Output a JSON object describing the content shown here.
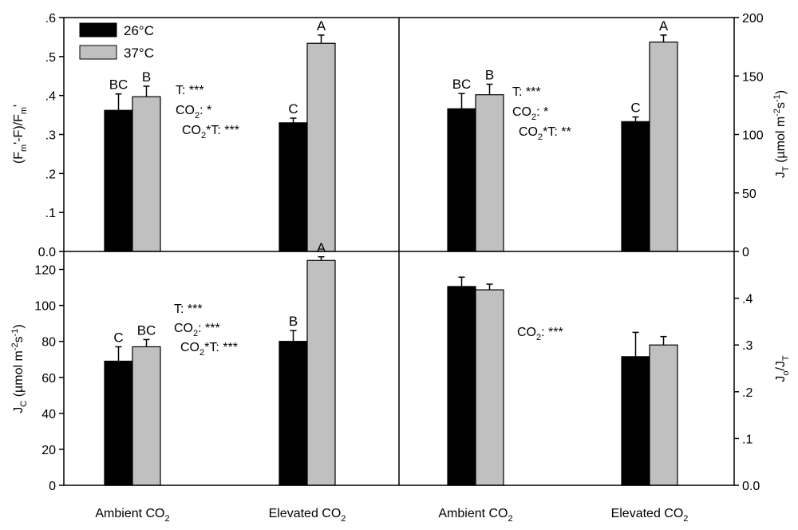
{
  "legend": [
    {
      "name": "26°C",
      "color": "#000000"
    },
    {
      "name": "37°C",
      "color": "#c0c0c0"
    }
  ],
  "x_category_labels": [
    {
      "main": "Ambient CO",
      "sub": "2"
    },
    {
      "main": "Elevated CO",
      "sub": "2"
    }
  ],
  "y_axis_labels": {
    "top_left": {
      "p1": "(F",
      "s1": "m",
      "p2": "'-F)/F",
      "s2": "m",
      "p3": "'"
    },
    "top_right": {
      "p1": "J",
      "s1": "T",
      "p2": " (µmol  m",
      "sp1": "-2",
      "p3": "s",
      "sp2": "-1",
      "p4": ")"
    },
    "bottom_left": {
      "p1": "J",
      "s1": "C",
      "p2": " (µmol m",
      "sp1": "-2",
      "p3": "s",
      "sp2": "-1",
      "p4": ")"
    },
    "bottom_right": {
      "p1": "J",
      "s1": "o",
      "p2": "/J",
      "s2": "T"
    }
  },
  "chart_data": [
    {
      "type": "bar",
      "panel": "top-left",
      "categories": [
        "Ambient CO2",
        "Elevated CO2"
      ],
      "series": [
        {
          "name": "26°C",
          "values": [
            0.362,
            0.33
          ],
          "errors": [
            0.042,
            0.012
          ],
          "letters": [
            "BC",
            "C"
          ]
        },
        {
          "name": "37°C",
          "values": [
            0.397,
            0.534
          ],
          "errors": [
            0.027,
            0.021
          ],
          "letters": [
            "B",
            "A"
          ]
        }
      ],
      "ylim": [
        0,
        0.6
      ],
      "yticks": [
        0,
        0.1,
        0.2,
        0.3,
        0.4,
        0.5,
        0.6
      ],
      "ytick_labels": [
        "0.0",
        ".1",
        ".2",
        ".3",
        ".4",
        ".5",
        ".6"
      ],
      "axis_side": "left",
      "stats": [
        {
          "a": "T: ***"
        },
        {
          "a": "CO",
          "sub": "2",
          "b": ": *"
        },
        {
          "a": "CO",
          "sub": "2",
          "b": "*T: ***"
        }
      ]
    },
    {
      "type": "bar",
      "panel": "top-right",
      "categories": [
        "Ambient CO2",
        "Elevated CO2"
      ],
      "series": [
        {
          "name": "26°C",
          "values": [
            122,
            111
          ],
          "errors": [
            13,
            4
          ],
          "letters": [
            "BC",
            "C"
          ]
        },
        {
          "name": "37°C",
          "values": [
            134,
            179
          ],
          "errors": [
            9,
            6
          ],
          "letters": [
            "B",
            "A"
          ]
        }
      ],
      "ylim": [
        0,
        200
      ],
      "yticks": [
        0,
        50,
        100,
        150,
        200
      ],
      "ytick_labels": [
        "0",
        "50",
        "100",
        "150",
        "200"
      ],
      "axis_side": "right",
      "stats": [
        {
          "a": "T: ***"
        },
        {
          "a": "CO",
          "sub": "2",
          "b": ": *"
        },
        {
          "a": "CO",
          "sub": "2",
          "b": "*T: **"
        }
      ]
    },
    {
      "type": "bar",
      "panel": "bottom-left",
      "categories": [
        "Ambient CO2",
        "Elevated CO2"
      ],
      "series": [
        {
          "name": "26°C",
          "values": [
            69,
            80
          ],
          "errors": [
            8,
            6
          ],
          "letters": [
            "C",
            "B"
          ]
        },
        {
          "name": "37°C",
          "values": [
            77,
            125
          ],
          "errors": [
            4,
            2
          ],
          "letters": [
            "BC",
            "A"
          ]
        }
      ],
      "ylim": [
        0,
        130
      ],
      "yticks": [
        0,
        20,
        40,
        60,
        80,
        100,
        120
      ],
      "ytick_labels": [
        "0",
        "20",
        "40",
        "60",
        "80",
        "100",
        "120"
      ],
      "axis_side": "left",
      "stats": [
        {
          "a": "T: ***"
        },
        {
          "a": "CO",
          "sub": "2",
          "b": ": ***"
        },
        {
          "a": "CO",
          "sub": "2",
          "b": "*T: ***"
        }
      ]
    },
    {
      "type": "bar",
      "panel": "bottom-right",
      "categories": [
        "Ambient CO2",
        "Elevated CO2"
      ],
      "series": [
        {
          "name": "26°C",
          "values": [
            0.425,
            0.275
          ],
          "errors": [
            0.02,
            0.052
          ],
          "letters": [
            "",
            ""
          ]
        },
        {
          "name": "37°C",
          "values": [
            0.418,
            0.3
          ],
          "errors": [
            0.012,
            0.018
          ],
          "letters": [
            "",
            ""
          ]
        }
      ],
      "ylim": [
        0,
        0.5
      ],
      "yticks": [
        0,
        0.1,
        0.2,
        0.3,
        0.4
      ],
      "ytick_labels": [
        "0.0",
        ".1",
        ".2",
        ".3",
        ".4"
      ],
      "axis_side": "right",
      "stats": [
        {
          "a": "CO",
          "sub": "2",
          "b": ": ***"
        }
      ]
    }
  ]
}
